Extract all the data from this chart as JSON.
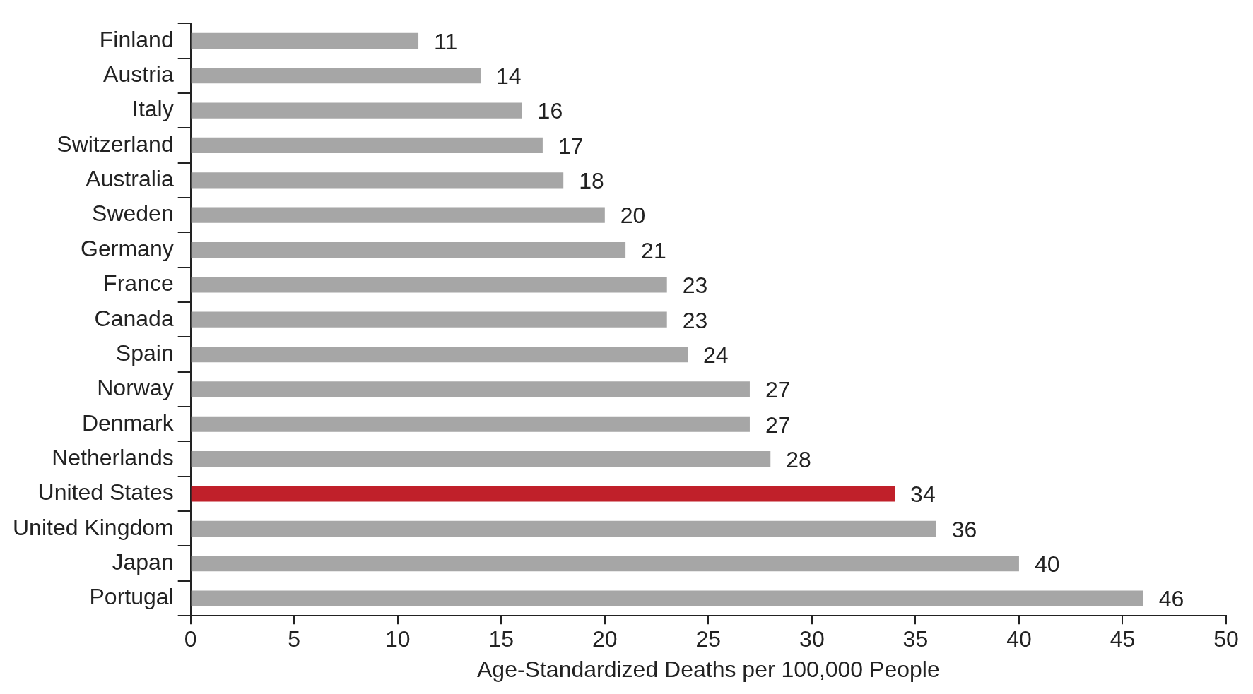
{
  "chart_data": {
    "type": "bar",
    "orientation": "horizontal",
    "xlabel": "Age-Standardized Deaths per 100,000 People",
    "categories": [
      "Finland",
      "Austria",
      "Italy",
      "Switzerland",
      "Australia",
      "Sweden",
      "Germany",
      "France",
      "Canada",
      "Spain",
      "Norway",
      "Denmark",
      "Netherlands",
      "United States",
      "United Kingdom",
      "Japan",
      "Portugal"
    ],
    "values": [
      11,
      14,
      16,
      17,
      18,
      20,
      21,
      23,
      23,
      24,
      27,
      27,
      28,
      34,
      36,
      40,
      46
    ],
    "colors": [
      "#a6a6a6",
      "#a6a6a6",
      "#a6a6a6",
      "#a6a6a6",
      "#a6a6a6",
      "#a6a6a6",
      "#a6a6a6",
      "#a6a6a6",
      "#a6a6a6",
      "#a6a6a6",
      "#a6a6a6",
      "#a6a6a6",
      "#a6a6a6",
      "#c0202a",
      "#a6a6a6",
      "#a6a6a6",
      "#a6a6a6"
    ],
    "xlim": [
      0,
      50
    ],
    "xticks": [
      0,
      5,
      10,
      15,
      20,
      25,
      30,
      35,
      40,
      45,
      50
    ],
    "data_labels": true,
    "grid": false,
    "legend": false
  }
}
